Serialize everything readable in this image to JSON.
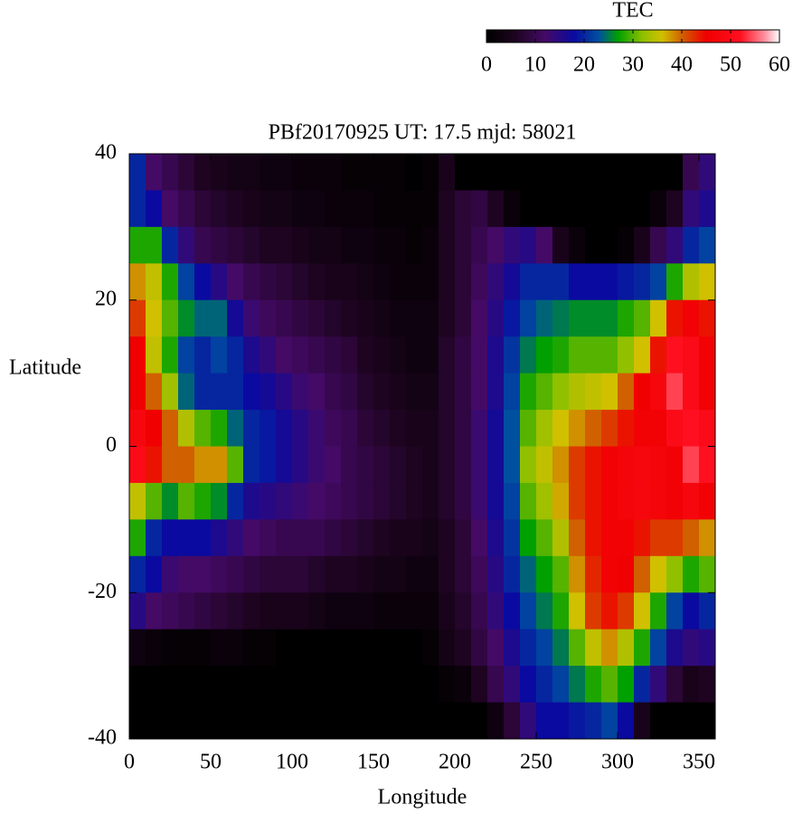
{
  "chart_data": {
    "type": "heatmap",
    "title": "PBf20170925  UT: 17.5  mjd: 58021",
    "xlabel": "Longitude",
    "ylabel": "Latitude",
    "colorbar_title": "TEC",
    "xlim": [
      0,
      360
    ],
    "xticks": [
      0,
      50,
      100,
      150,
      200,
      250,
      300,
      350
    ],
    "ylim": [
      -40,
      40
    ],
    "yticks": [
      -40,
      -20,
      0,
      20,
      40
    ],
    "cblim": [
      0,
      60
    ],
    "cbticks": [
      0,
      10,
      20,
      30,
      40,
      50,
      60
    ],
    "colorscale": [
      [
        0,
        "#000000"
      ],
      [
        6,
        "#1e0420"
      ],
      [
        12,
        "#440a66"
      ],
      [
        18,
        "#0a0aa0"
      ],
      [
        23,
        "#0050a0"
      ],
      [
        27,
        "#00a000"
      ],
      [
        32,
        "#90c000"
      ],
      [
        36,
        "#d0c000"
      ],
      [
        40,
        "#d06000"
      ],
      [
        45,
        "#f00000"
      ],
      [
        52,
        "#ff1020"
      ],
      [
        57,
        "#ff90a0"
      ],
      [
        60,
        "#ffffff"
      ]
    ],
    "x": [
      5,
      15,
      25,
      35,
      45,
      55,
      65,
      75,
      85,
      95,
      105,
      115,
      125,
      135,
      145,
      155,
      165,
      175,
      185,
      195,
      205,
      215,
      225,
      235,
      245,
      255,
      265,
      275,
      285,
      295,
      305,
      315,
      325,
      335,
      345,
      355
    ],
    "y": [
      37.5,
      32.5,
      27.5,
      22.5,
      17.5,
      12.5,
      7.5,
      2.5,
      -2.5,
      -7.5,
      -12.5,
      -17.5,
      -22.5,
      -27.5,
      -32.5,
      -37.5
    ],
    "values": [
      [
        20,
        20,
        28,
        38,
        42,
        45,
        45,
        48,
        50,
        35,
        28,
        20,
        15,
        3,
        0,
        0
      ],
      [
        12,
        18,
        28,
        35,
        36,
        35,
        40,
        45,
        44,
        30,
        20,
        18,
        12,
        2,
        0,
        0
      ],
      [
        10,
        12,
        20,
        28,
        30,
        28,
        33,
        40,
        40,
        26,
        18,
        13,
        11,
        1,
        0,
        0
      ],
      [
        8,
        10,
        14,
        22,
        26,
        22,
        24,
        34,
        40,
        30,
        18,
        12,
        10,
        1,
        0,
        0
      ],
      [
        6,
        8,
        10,
        18,
        24,
        20,
        20,
        30,
        38,
        28,
        18,
        12,
        9,
        1,
        0,
        0
      ],
      [
        5,
        7,
        9,
        15,
        24,
        22,
        20,
        28,
        38,
        26,
        16,
        11,
        8,
        2,
        0,
        0
      ],
      [
        4,
        6,
        8,
        12,
        17,
        20,
        20,
        24,
        30,
        20,
        14,
        10,
        7,
        2,
        0,
        0
      ],
      [
        4,
        5,
        7,
        10,
        13,
        16,
        18,
        20,
        20,
        16,
        12,
        9,
        6,
        1,
        0,
        0
      ],
      [
        3,
        4,
        6,
        9,
        11,
        14,
        17,
        19,
        19,
        15,
        11,
        8,
        5,
        1,
        0,
        0
      ],
      [
        3,
        4,
        6,
        8,
        10,
        12,
        15,
        17,
        17,
        14,
        10,
        8,
        5,
        0,
        0,
        0
      ],
      [
        2,
        3,
        5,
        7,
        9,
        11,
        13,
        15,
        15,
        13,
        10,
        8,
        5,
        0,
        0,
        0
      ],
      [
        2,
        3,
        4,
        6,
        8,
        10,
        12,
        13,
        13,
        12,
        10,
        7,
        4,
        0,
        0,
        0
      ],
      [
        2,
        2,
        4,
        5,
        7,
        9,
        10,
        11,
        12,
        11,
        9,
        6,
        3,
        0,
        0,
        0
      ],
      [
        1,
        2,
        3,
        5,
        6,
        8,
        9,
        10,
        10,
        10,
        8,
        6,
        3,
        0,
        0,
        0
      ],
      [
        1,
        2,
        3,
        4,
        5,
        6,
        7,
        8,
        9,
        9,
        7,
        5,
        3,
        0,
        0,
        0
      ],
      [
        1,
        1,
        2,
        3,
        4,
        5,
        6,
        7,
        8,
        8,
        6,
        4,
        2,
        0,
        0,
        0
      ],
      [
        1,
        1,
        2,
        2,
        3,
        4,
        5,
        6,
        7,
        7,
        5,
        4,
        2,
        0,
        0,
        0
      ],
      [
        0,
        1,
        1,
        2,
        3,
        3,
        4,
        5,
        6,
        6,
        5,
        3,
        2,
        0,
        0,
        0
      ],
      [
        1,
        1,
        2,
        2,
        3,
        3,
        4,
        5,
        5,
        5,
        4,
        3,
        2,
        1,
        0,
        0
      ],
      [
        5,
        6,
        6,
        6,
        6,
        7,
        7,
        7,
        7,
        7,
        6,
        6,
        5,
        4,
        1,
        0
      ],
      [
        0,
        8,
        8,
        8,
        8,
        9,
        9,
        9,
        9,
        9,
        8,
        8,
        7,
        6,
        2,
        0
      ],
      [
        0,
        9,
        10,
        11,
        12,
        12,
        12,
        13,
        13,
        13,
        12,
        11,
        10,
        9,
        6,
        0
      ],
      [
        0,
        6,
        12,
        14,
        15,
        16,
        16,
        17,
        17,
        17,
        16,
        15,
        14,
        12,
        10,
        3
      ],
      [
        0,
        2,
        14,
        17,
        19,
        21,
        22,
        23,
        23,
        22,
        21,
        20,
        18,
        16,
        14,
        8
      ],
      [
        0,
        0,
        15,
        20,
        22,
        25,
        28,
        30,
        32,
        30,
        27,
        24,
        22,
        20,
        18,
        14
      ],
      [
        0,
        0,
        12,
        20,
        24,
        27,
        30,
        33,
        35,
        33,
        30,
        27,
        25,
        22,
        20,
        18
      ],
      [
        0,
        0,
        5,
        20,
        25,
        28,
        32,
        36,
        38,
        37,
        34,
        30,
        28,
        25,
        22,
        18
      ],
      [
        0,
        0,
        2,
        18,
        26,
        30,
        34,
        38,
        42,
        42,
        40,
        38,
        36,
        30,
        25,
        19
      ],
      [
        0,
        0,
        0,
        18,
        26,
        30,
        35,
        40,
        44,
        44,
        44,
        43,
        42,
        35,
        28,
        20
      ],
      [
        0,
        0,
        0,
        18,
        26,
        30,
        36,
        42,
        46,
        46,
        46,
        46,
        44,
        38,
        30,
        22
      ],
      [
        0,
        0,
        1,
        19,
        28,
        32,
        40,
        44,
        47,
        47,
        46,
        45,
        42,
        34,
        27,
        18
      ],
      [
        0,
        0,
        5,
        20,
        30,
        36,
        45,
        46,
        48,
        48,
        44,
        40,
        36,
        28,
        20,
        5
      ],
      [
        0,
        2,
        10,
        22,
        36,
        44,
        48,
        46,
        47,
        47,
        42,
        36,
        28,
        22,
        14,
        0
      ],
      [
        0,
        6,
        14,
        28,
        44,
        52,
        54,
        50,
        46,
        46,
        42,
        32,
        22,
        16,
        8,
        0
      ],
      [
        10,
        14,
        20,
        34,
        46,
        50,
        50,
        52,
        54,
        48,
        40,
        28,
        18,
        14,
        5,
        0
      ],
      [
        14,
        16,
        22,
        36,
        44,
        46,
        46,
        50,
        52,
        46,
        38,
        30,
        20,
        15,
        6,
        0
      ]
    ]
  }
}
